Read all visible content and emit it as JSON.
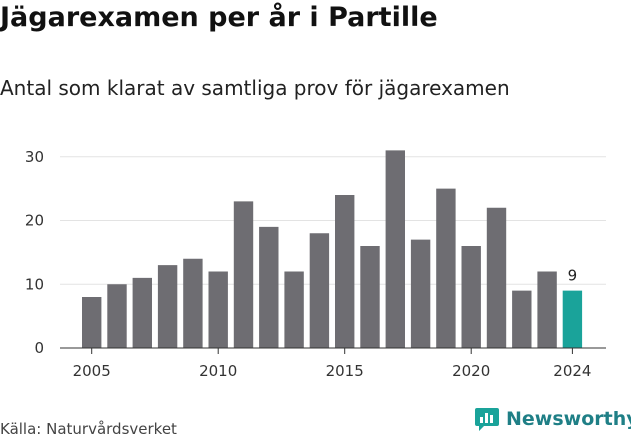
{
  "title": "Jägarexamen per år i Partille",
  "subtitle": "Antal som klarat av samtliga prov för jägarexamen",
  "source": "Källa: Naturvårdsverket",
  "brand": {
    "name": "Newsworthy",
    "icon": "newsworthy-logo-icon"
  },
  "colors": {
    "bar": "#6e6d72",
    "highlight": "#1aa39a",
    "grid": "#e3e3e3",
    "axis": "#333333"
  },
  "chart_data": {
    "type": "bar",
    "x": [
      2005,
      2006,
      2007,
      2008,
      2009,
      2010,
      2011,
      2012,
      2013,
      2014,
      2015,
      2016,
      2017,
      2018,
      2019,
      2020,
      2021,
      2022,
      2023,
      2024
    ],
    "values": [
      8,
      10,
      11,
      13,
      14,
      12,
      23,
      19,
      12,
      18,
      24,
      16,
      31,
      17,
      25,
      16,
      22,
      9,
      12,
      9
    ],
    "highlight_index": 19,
    "data_labels": [
      {
        "x": 2024,
        "text": "9"
      }
    ],
    "ylim": [
      0,
      32
    ],
    "yticks": [
      "0",
      "10",
      "20",
      "30"
    ],
    "ytick_values": [
      0,
      10,
      20,
      30
    ],
    "xticks": [
      "2005",
      "2010",
      "2015",
      "2020",
      "2024"
    ],
    "xtick_values": [
      2005,
      2010,
      2015,
      2020,
      2024
    ],
    "grid": true
  }
}
